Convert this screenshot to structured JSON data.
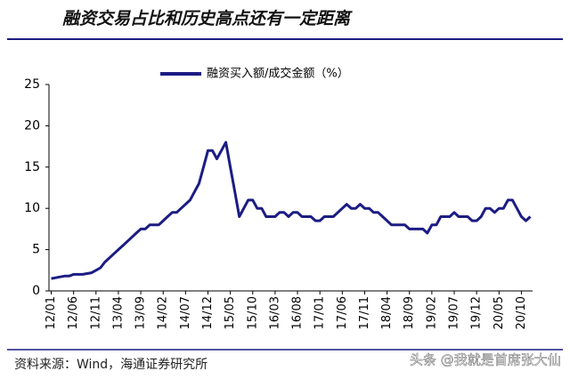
{
  "chart_data": {
    "type": "line",
    "title": "融资交易占比和历史高点还有一定距离",
    "source": "资料来源：Wind，海通证券研究所",
    "watermark": "头条 @我就是首席张大仙",
    "categories": [
      "12/01",
      null,
      null,
      null,
      null,
      "12/06",
      null,
      null,
      null,
      null,
      "12/11",
      null,
      null,
      null,
      null,
      "13/04",
      null,
      null,
      null,
      null,
      "13/09",
      null,
      null,
      null,
      null,
      "14/02",
      null,
      null,
      null,
      null,
      "14/07",
      null,
      null,
      null,
      null,
      "14/12",
      null,
      null,
      null,
      null,
      "15/05",
      null,
      null,
      null,
      null,
      "15/10",
      null,
      null,
      null,
      null,
      "16/03",
      null,
      null,
      null,
      null,
      "16/08",
      null,
      null,
      null,
      null,
      "17/01",
      null,
      null,
      null,
      null,
      "17/06",
      null,
      null,
      null,
      null,
      "17/11",
      null,
      null,
      null,
      null,
      "18/04",
      null,
      null,
      null,
      null,
      "18/09",
      null,
      null,
      null,
      null,
      "19/02",
      null,
      null,
      null,
      null,
      "19/07",
      null,
      null,
      null,
      null,
      "19/12",
      null,
      null,
      null,
      null,
      "20/05",
      null,
      null,
      null,
      null,
      "20/10",
      null,
      null
    ],
    "series": [
      {
        "name": "融资买入额/成交金额（%）",
        "color": "#1c1c84",
        "values": [
          1.5,
          1.6,
          1.7,
          1.8,
          1.8,
          2.0,
          2.0,
          2.0,
          2.1,
          2.2,
          2.5,
          2.8,
          3.5,
          4,
          4.5,
          5,
          5.5,
          6,
          6.5,
          7,
          7.5,
          7.5,
          8,
          8,
          8,
          8.5,
          9,
          9.5,
          9.5,
          10,
          10.5,
          11,
          12,
          13,
          15,
          17,
          17,
          16,
          17,
          18,
          15,
          12,
          9,
          10,
          11,
          11,
          10,
          10,
          9,
          9,
          9,
          9.5,
          9.5,
          9,
          9.5,
          9.5,
          9,
          9,
          9,
          8.5,
          8.5,
          9,
          9,
          9,
          9.5,
          10,
          10.5,
          10,
          10,
          10.5,
          10,
          10,
          9.5,
          9.5,
          9,
          8.5,
          8,
          8,
          8,
          8,
          7.5,
          7.5,
          7.5,
          7.5,
          7,
          8,
          8,
          9,
          9,
          9,
          9.5,
          9,
          9,
          9,
          8.5,
          8.5,
          9,
          10,
          10,
          9.5,
          10,
          10,
          11,
          11,
          10,
          9,
          8.5,
          9
        ]
      }
    ],
    "ylim": [
      0,
      25
    ],
    "yticks": [
      0,
      5,
      10,
      15,
      20,
      25
    ],
    "grid": false
  }
}
